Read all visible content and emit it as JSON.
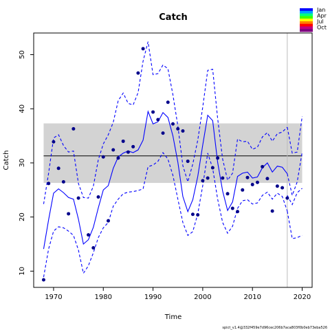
{
  "chart_data": {
    "type": "line",
    "title": "Catch",
    "xlabel": "Time",
    "ylabel": "Catch",
    "xlim": [
      1966,
      2022
    ],
    "ylim": [
      7,
      54
    ],
    "xticks": [
      "1970",
      "1980",
      "1990",
      "2000",
      "2010",
      "2020"
    ],
    "yticks": [
      "10",
      "20",
      "30",
      "40",
      "50"
    ],
    "grid": false,
    "legend": {
      "placement": "top-right",
      "entries": [
        "Jan",
        "Apr",
        "Jul",
        "Oct"
      ],
      "gradient": [
        "#0000ff",
        "#00a0ff",
        "#00ff80",
        "#40ff00",
        "#ffff00",
        "#ff8000",
        "#ff0000",
        "#c00080",
        "#800080"
      ]
    },
    "reference_band": {
      "low": 26.3,
      "high": 37.3,
      "color": "#d3d3d3"
    },
    "reference_line": {
      "value": 31.3,
      "color": "#000000"
    },
    "vertical_line": {
      "x": 2017,
      "color": "#bbbbbb"
    },
    "colors": {
      "fit": "#0000ff",
      "observations": "#00008b"
    },
    "series": [
      {
        "type": "scatter",
        "x": [
          1968,
          1969,
          1970,
          1971,
          1972,
          1973,
          1974,
          1975,
          1977,
          1978,
          1979,
          1980,
          1981,
          1982,
          1983,
          1984,
          1985,
          1986,
          1987,
          1988,
          1990,
          1991,
          1992,
          1993,
          1994,
          1995,
          1996,
          1997,
          1998,
          1999,
          2000,
          2001,
          2002,
          2003,
          2004,
          2005,
          2006,
          2007,
          2008,
          2009,
          2010,
          2011,
          2012,
          2013,
          2014,
          2015,
          2016,
          2017
        ],
        "values": [
          8.4,
          26.2,
          33.9,
          29.0,
          26.5,
          20.6,
          36.3,
          23.5,
          16.7,
          14.3,
          23.7,
          31.1,
          19.3,
          32.4,
          30.9,
          34.0,
          32.0,
          33.0,
          46.6,
          51.1,
          39.4,
          38.0,
          35.5,
          41.2,
          37.2,
          36.3,
          35.9,
          30.3,
          20.5,
          20.4,
          26.7,
          27.2,
          29.1,
          30.9,
          27.2,
          24.3,
          21.6,
          21.0,
          25.0,
          27.3,
          26.0,
          26.4,
          29.3,
          27.1,
          21.1,
          25.7,
          25.4,
          23.5
        ]
      },
      {
        "type": "line",
        "style": "solid",
        "x": [
          1968,
          1969,
          1970,
          1971,
          1972,
          1973,
          1974,
          1975,
          1976,
          1977,
          1978,
          1979,
          1980,
          1981,
          1982,
          1983,
          1984,
          1985,
          1986,
          1987,
          1988,
          1989,
          1990,
          1991,
          1992,
          1993,
          1994,
          1995,
          1996,
          1997,
          1998,
          1999,
          2000,
          2001,
          2002,
          2003,
          2004,
          2005,
          2006,
          2007,
          2008,
          2009,
          2010,
          2011,
          2012,
          2013,
          2014,
          2015,
          2016,
          2017
        ],
        "values": [
          14.1,
          19.5,
          24.4,
          25.2,
          24.5,
          23.6,
          23.3,
          19.6,
          15.0,
          15.8,
          18.1,
          21.7,
          25.0,
          25.8,
          29.0,
          31.1,
          31.8,
          32.2,
          31.9,
          32.4,
          34.2,
          39.5,
          37.2,
          37.6,
          39.3,
          38.4,
          35.0,
          30.1,
          23.8,
          21.0,
          23.2,
          27.5,
          33.3,
          38.8,
          37.8,
          30.1,
          24.8,
          21.2,
          22.8,
          27.5,
          28.1,
          28.3,
          27.2,
          27.4,
          29.1,
          30.0,
          28.3,
          29.4,
          29.2,
          28.0
        ]
      },
      {
        "type": "line",
        "style": "dashed",
        "x": [
          1968,
          1969,
          1970,
          1971,
          1972,
          1973,
          1974,
          1975,
          1976,
          1977,
          1978,
          1979,
          1980,
          1981,
          1982,
          1983,
          1984,
          1985,
          1986,
          1987,
          1988,
          1989,
          1990,
          1991,
          1992,
          1993,
          1994,
          1995,
          1996,
          1997,
          1998,
          1999,
          2000,
          2001,
          2002,
          2003,
          2004,
          2005,
          2006,
          2007,
          2008,
          2009,
          2010,
          2011,
          2012,
          2013,
          2014,
          2015,
          2016,
          2017
        ],
        "values": [
          22.4,
          28.1,
          34.6,
          35.2,
          33.2,
          32.0,
          32.2,
          26.2,
          23.6,
          23.5,
          25.7,
          30.6,
          33.5,
          35.2,
          37.5,
          41.5,
          42.9,
          41.0,
          40.7,
          43.0,
          48.8,
          52.4,
          46.3,
          46.5,
          48.1,
          47.4,
          42.6,
          36.8,
          29.5,
          26.5,
          29.8,
          34.2,
          40.3,
          47.1,
          47.3,
          38.2,
          30.7,
          26.8,
          28.1,
          34.4,
          33.9,
          34.0,
          32.5,
          32.9,
          34.8,
          35.6,
          34.0,
          35.4,
          35.7,
          36.6
        ]
      },
      {
        "type": "line",
        "style": "dashed",
        "x": [
          1968,
          1969,
          1970,
          1971,
          1972,
          1973,
          1974,
          1975,
          1976,
          1977,
          1978,
          1979,
          1980,
          1981,
          1982,
          1983,
          1984,
          1985,
          1986,
          1987,
          1988,
          1989,
          1990,
          1991,
          1992,
          1993,
          1994,
          1995,
          1996,
          1997,
          1998,
          1999,
          2000,
          2001,
          2002,
          2003,
          2004,
          2005,
          2006,
          2007,
          2008,
          2009,
          2010,
          2011,
          2012,
          2013,
          2014,
          2015,
          2016,
          2017
        ],
        "values": [
          8.9,
          14.1,
          17.4,
          18.2,
          18.0,
          17.4,
          16.6,
          13.9,
          9.6,
          11.0,
          13.4,
          16.2,
          18.0,
          19.0,
          22.0,
          23.3,
          24.3,
          24.6,
          24.7,
          24.9,
          25.2,
          29.3,
          29.6,
          30.3,
          31.9,
          30.7,
          27.7,
          23.3,
          19.0,
          16.6,
          17.3,
          20.6,
          25.8,
          31.8,
          29.0,
          23.3,
          19.0,
          17.0,
          18.3,
          21.6,
          23.0,
          23.2,
          22.4,
          22.6,
          24.0,
          24.6,
          23.3,
          24.4,
          23.8,
          21.1
        ]
      },
      {
        "type": "line",
        "style": "dashed",
        "x": [
          2017,
          2018,
          2019,
          2020
        ],
        "values": [
          36.6,
          31.8,
          32.0,
          38.6
        ]
      },
      {
        "type": "line",
        "style": "dashed",
        "x": [
          2017,
          2018,
          2019,
          2020
        ],
        "values": [
          28.0,
          24.0,
          26.5,
          32.0
        ]
      },
      {
        "type": "line",
        "style": "dashed",
        "x": [
          2017,
          2018,
          2019,
          2020
        ],
        "values": [
          21.1,
          16.0,
          16.2,
          16.6
        ]
      },
      {
        "type": "line",
        "style": "dashed",
        "x": [
          2017,
          2018,
          2019,
          2020
        ],
        "values": [
          24.0,
          22.3,
          24.5,
          25.3
        ]
      }
    ]
  },
  "footnote": "spict_v1.4@332f459e7d96cec206b7aca803f0b0eb73eba526"
}
